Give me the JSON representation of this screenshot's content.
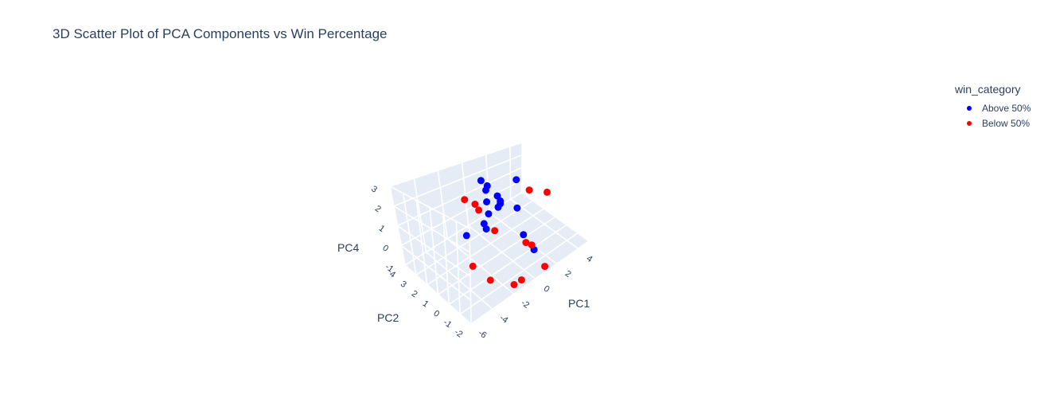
{
  "chart_data": {
    "type": "scatter3d",
    "title": "3D Scatter Plot of PCA Components vs Win Percentage",
    "axes": {
      "x": {
        "label": "PC1",
        "range": [
          -6,
          5
        ],
        "ticks": [
          "-6",
          "-4",
          "-2",
          "0",
          "2",
          "4"
        ]
      },
      "y": {
        "label": "PC2",
        "range": [
          -2,
          4
        ],
        "ticks": [
          "4",
          "3",
          "2",
          "1",
          "0",
          "-1",
          "-2"
        ]
      },
      "z": {
        "label": "PC4",
        "range": [
          -1,
          3
        ],
        "ticks": [
          "3",
          "2",
          "1",
          "0",
          "-1"
        ]
      }
    },
    "legend": {
      "title": "win_category",
      "position": "top-right",
      "items": [
        {
          "label": "Above 50%",
          "color": "#0000ff"
        },
        {
          "label": "Below 50%",
          "color": "#ff0000"
        }
      ]
    },
    "grid": true,
    "series": [
      {
        "name": "Above 50%",
        "color": "#0000ff",
        "points": [
          [
            -1.24,
            0.0,
            2.5
          ],
          [
            -1.69,
            0.5,
            1.8
          ],
          [
            -2.23,
            0.2,
            1.3
          ],
          [
            -1.47,
            1.1,
            1.0
          ],
          [
            -2.13,
            2.0,
            0.2
          ],
          [
            0.7,
            2.8,
            1.8
          ],
          [
            -0.39,
            1.0,
            2.2
          ],
          [
            -0.07,
            2.2,
            2.0
          ],
          [
            -0.22,
            1.1,
            1.5
          ],
          [
            0.3,
            2.9,
            2.2
          ],
          [
            0.9,
            0.6,
            1.3
          ],
          [
            -0.45,
            1.8,
            1.6
          ],
          [
            0.18,
            1.3,
            1.5
          ],
          [
            1.65,
            1.4,
            2.4
          ],
          [
            0.59,
            -1.2,
            -0.1
          ],
          [
            1.0,
            0.1,
            0.0
          ]
        ]
      },
      {
        "name": "Below 50%",
        "color": "#ff0000",
        "points": [
          [
            -2.5,
            0.8,
            2.4
          ],
          [
            -2.4,
            1.7,
            2.3
          ],
          [
            -1.68,
            1.3,
            1.7
          ],
          [
            -1.5,
            0.2,
            1.0
          ],
          [
            1.0,
            -1.5,
            2.8
          ],
          [
            1.9,
            0.6,
            2.0
          ],
          [
            0.81,
            -0.8,
            -0.1
          ],
          [
            0.7,
            -0.4,
            -0.1
          ],
          [
            -0.5,
            -3.1,
            0.2
          ],
          [
            -3.4,
            0.3,
            -0.2
          ],
          [
            -2.74,
            -0.6,
            -0.7
          ],
          [
            -1.69,
            -1.7,
            -0.8
          ],
          [
            -1.45,
            -2.1,
            -0.5
          ]
        ]
      }
    ]
  }
}
